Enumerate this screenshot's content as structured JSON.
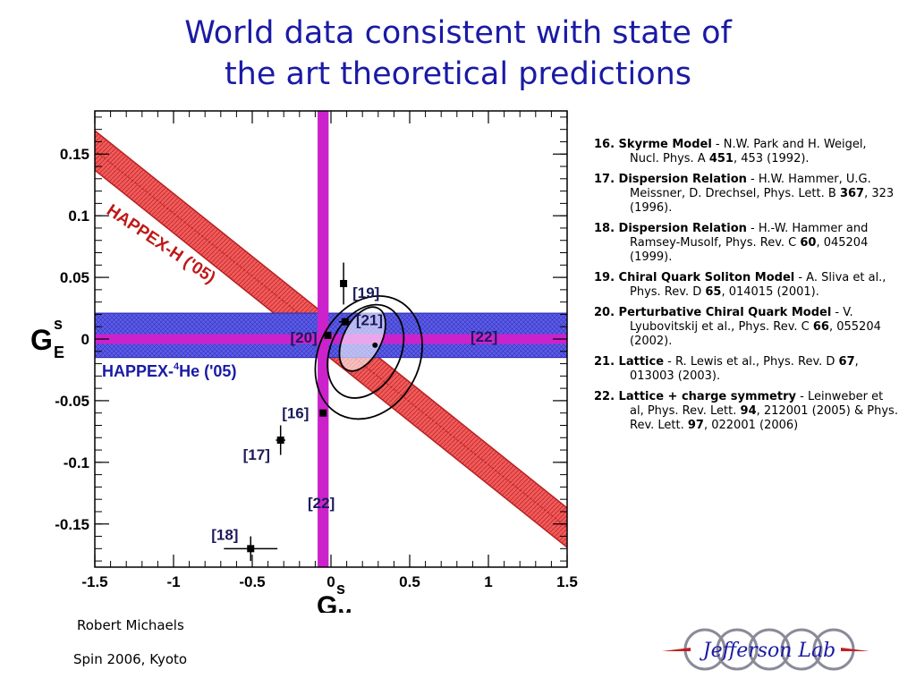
{
  "title": {
    "line1": "World data consistent with state of",
    "line2": "the art theoretical predictions"
  },
  "chart_data": {
    "type": "scatter",
    "xlabel": "G",
    "xlabel_sup": "s",
    "xlabel_sub": "M",
    "ylabel": "G",
    "ylabel_sup": "s",
    "ylabel_sub": "E",
    "xlim": [
      -1.5,
      1.5
    ],
    "ylim": [
      -0.185,
      0.185
    ],
    "x_ticks": [
      -1.5,
      -1,
      -0.5,
      0,
      0.5,
      1,
      1.5
    ],
    "x_tick_labels": [
      "-1.5",
      "-1",
      "-0.5",
      "0",
      "0.5",
      "1",
      "1.5"
    ],
    "y_ticks": [
      -0.15,
      -0.1,
      -0.05,
      0,
      0.05,
      0.1,
      0.15
    ],
    "y_tick_labels": [
      "-0.15",
      "-0.1",
      "-0.05",
      "0",
      "0.05",
      "0.1",
      "0.15"
    ],
    "bands": [
      {
        "label": "HAPPEX-H ('05)",
        "type": "diagonal",
        "y_at_x0": 0.0,
        "slope": -0.102,
        "half_width": 0.016,
        "color": "#f05a5a"
      },
      {
        "label_main": "HAPPEX-",
        "label_sup": "4",
        "label_end": "He ('05)",
        "type": "horizontal",
        "center": 0.003,
        "half_width": 0.018,
        "color": "#5a5ae6"
      }
    ],
    "theory_bands": [
      {
        "label": "[22]",
        "type": "horizontal",
        "center": 0.0,
        "half_width": 0.004,
        "color": "#cc22cc"
      },
      {
        "label": "[22]",
        "type": "vertical",
        "center": -0.05,
        "half_width": 0.035,
        "color": "#cc22cc"
      }
    ],
    "points": [
      {
        "label": "[16]",
        "x": -0.05,
        "y": -0.06,
        "xerr": 0.0,
        "yerr": 0.0
      },
      {
        "label": "[17]",
        "x": -0.32,
        "y": -0.082,
        "xerr": 0.03,
        "yerr": 0.012
      },
      {
        "label": "[18]",
        "x": -0.51,
        "y": -0.17,
        "xerr": 0.17,
        "yerr": 0.01
      },
      {
        "label": "[19]",
        "x": 0.08,
        "y": 0.045,
        "xerr": 0.0,
        "yerr": 0.017
      },
      {
        "label": "[20]",
        "x": -0.02,
        "y": 0.003,
        "xerr": 0.0,
        "yerr": 0.0
      },
      {
        "label": "[21]",
        "x": 0.09,
        "y": 0.014,
        "xerr": 0.04,
        "yerr": 0.0
      }
    ],
    "extra_point": {
      "x": 0.28,
      "y": -0.005
    },
    "ellipses": [
      {
        "cx": 0.2,
        "cy": 0.0,
        "rx": 0.12,
        "ry": 0.028
      },
      {
        "cx": 0.22,
        "cy": -0.01,
        "rx": 0.22,
        "ry": 0.04
      },
      {
        "cx": 0.24,
        "cy": -0.015,
        "rx": 0.32,
        "ry": 0.052
      }
    ]
  },
  "references": [
    {
      "num": "16.",
      "name": "Skyrme Model",
      "pre": " - N.W. Park and H. Weigel, Nucl. Phys. A ",
      "bold": "451",
      "post": ", 453 (1992)."
    },
    {
      "num": "17.",
      "name": "Dispersion Relation",
      "pre": " - H.W. Hammer, U.G. Meissner, D. Drechsel, Phys. Lett. B ",
      "bold": "367",
      "post": ", 323 (1996)."
    },
    {
      "num": "18.",
      "name": "Dispersion Relation",
      "pre": " - H.-W. Hammer and Ramsey-Musolf, Phys. Rev. C ",
      "bold": "60",
      "post": ", 045204 (1999)."
    },
    {
      "num": "19.",
      "name": "Chiral Quark Soliton Model",
      "pre": " - A. Sliva et al., Phys. Rev. D ",
      "bold": "65",
      "post": ", 014015 (2001)."
    },
    {
      "num": "20.",
      "name": "Perturbative Chiral Quark Model",
      "pre": " - V. Lyubovitskij et al., Phys. Rev. C ",
      "bold": "66",
      "post": ", 055204 (2002)."
    },
    {
      "num": "21.",
      "name": "Lattice",
      "pre": " - R. Lewis et al., Phys. Rev. D ",
      "bold": "67",
      "post": ", 013003 (2003)."
    },
    {
      "num": "22.",
      "name": "Lattice + charge symmetry",
      "pre": " - Leinweber et al, Phys. Rev. Lett. ",
      "bold": "94",
      "post": ", 212001 (2005) & Phys. Rev. Lett. ",
      "bold2": "97",
      "post2": ", 022001 (2006)"
    }
  ],
  "footer": {
    "author": "Robert  Michaels",
    "conference": "Spin 2006,  Kyoto",
    "logo_text": "Jefferson Lab"
  }
}
